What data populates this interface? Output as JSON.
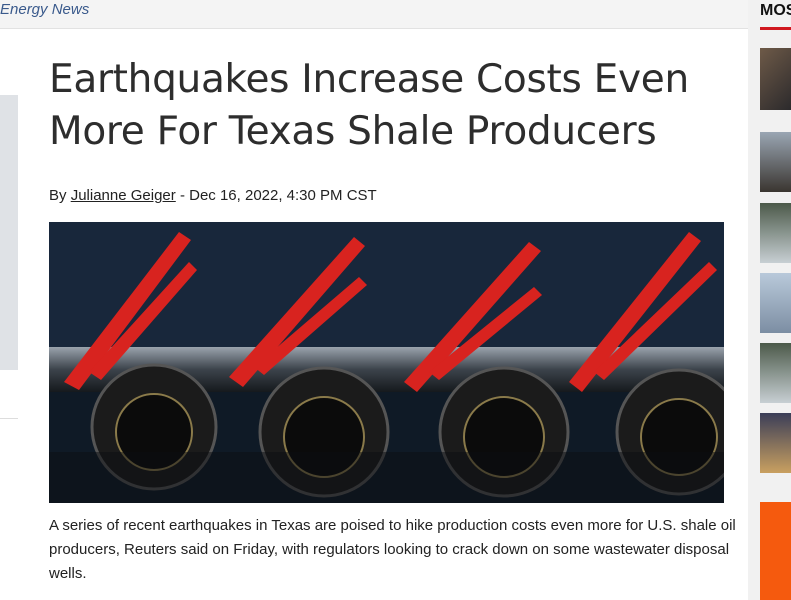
{
  "breadcrumb": "Energy News",
  "article": {
    "title": "Earthquakes Increase Costs Even More For Texas Shale Producers",
    "byline": {
      "prefix": "By",
      "author": "Julianne Geiger",
      "separator": "-",
      "date": "Dec 16, 2022, 4:30 PM CST"
    },
    "body": "A series of recent earthquakes in Texas are poised to hike production costs even more for U.S. shale oil producers, Reuters said on Friday, with regulators looking to crack down on some wastewater disposal wells."
  },
  "sidebar": {
    "heading": "MOS"
  }
}
